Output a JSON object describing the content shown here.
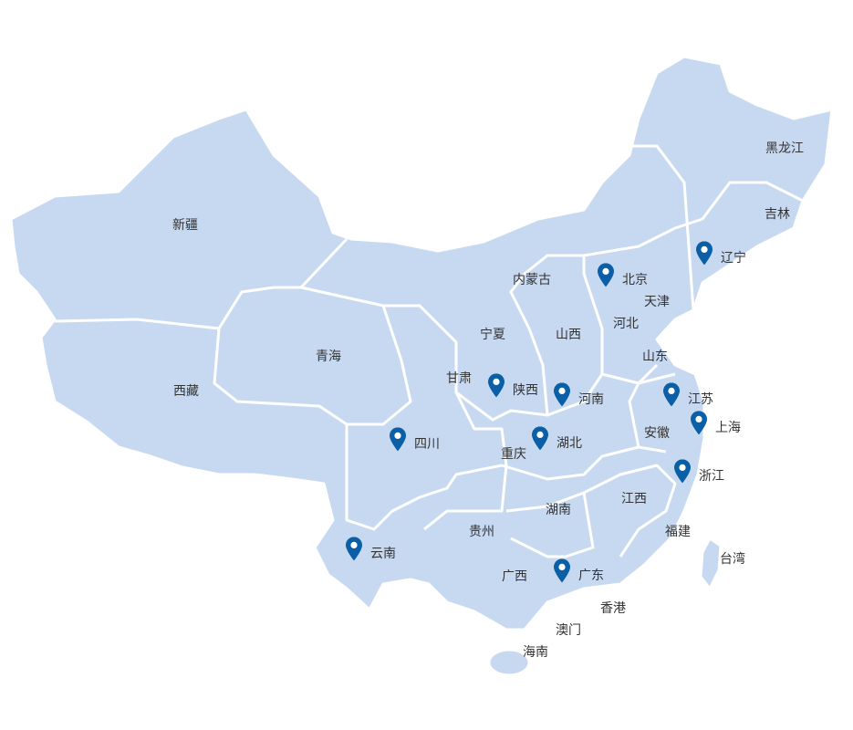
{
  "map": {
    "fill_color": "#c7d9f0",
    "border_color": "#ffffff",
    "marker_color": "#0a5fa6",
    "marker_icon": "map-pin-icon",
    "regions": [
      {
        "name": "新疆",
        "marked": false
      },
      {
        "name": "西藏",
        "marked": false
      },
      {
        "name": "青海",
        "marked": false
      },
      {
        "name": "甘肃",
        "marked": false
      },
      {
        "name": "宁夏",
        "marked": false
      },
      {
        "name": "内蒙古",
        "marked": false
      },
      {
        "name": "山西",
        "marked": false
      },
      {
        "name": "河北",
        "marked": false
      },
      {
        "name": "北京",
        "marked": true
      },
      {
        "name": "天津",
        "marked": false
      },
      {
        "name": "辽宁",
        "marked": true
      },
      {
        "name": "吉林",
        "marked": false
      },
      {
        "name": "黑龙江",
        "marked": false
      },
      {
        "name": "山东",
        "marked": false
      },
      {
        "name": "陕西",
        "marked": true
      },
      {
        "name": "河南",
        "marked": true
      },
      {
        "name": "江苏",
        "marked": true
      },
      {
        "name": "上海",
        "marked": true
      },
      {
        "name": "安徽",
        "marked": false
      },
      {
        "name": "湖北",
        "marked": true
      },
      {
        "name": "重庆",
        "marked": false
      },
      {
        "name": "四川",
        "marked": true
      },
      {
        "name": "浙江",
        "marked": true
      },
      {
        "name": "江西",
        "marked": false
      },
      {
        "name": "湖南",
        "marked": false
      },
      {
        "name": "贵州",
        "marked": false
      },
      {
        "name": "福建",
        "marked": false
      },
      {
        "name": "台湾",
        "marked": false
      },
      {
        "name": "云南",
        "marked": true
      },
      {
        "name": "广西",
        "marked": false
      },
      {
        "name": "广东",
        "marked": true
      },
      {
        "name": "香港",
        "marked": false
      },
      {
        "name": "澳门",
        "marked": false
      },
      {
        "name": "海南",
        "marked": false
      }
    ]
  }
}
